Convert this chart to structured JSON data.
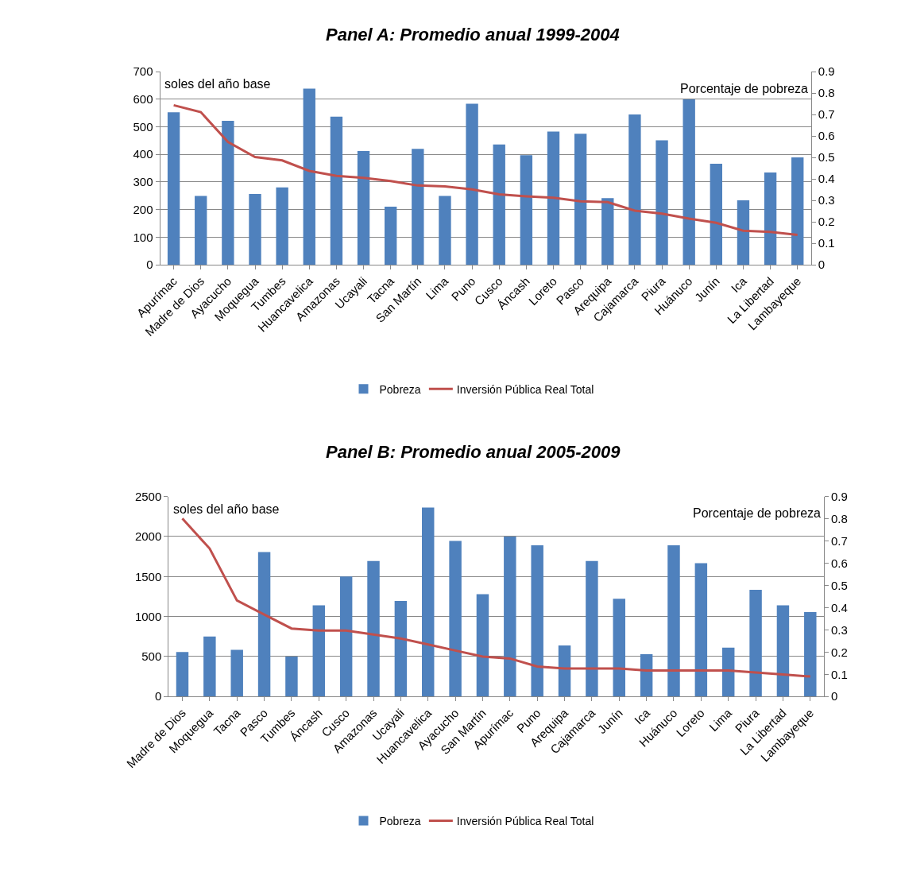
{
  "chart_data": [
    {
      "type": "bar",
      "title": "Panel A: Promedio anual 1999-2004",
      "ylabel": "soles del año base",
      "y2label": "Porcentaje de pobreza",
      "categories": [
        "Apurímac",
        "Madre de Dios",
        "Ayacucho",
        "Moquegua",
        "Tumbes",
        "Huancavelica",
        "Amazonas",
        "Ucayali",
        "Tacna",
        "San Martín",
        "Lima",
        "Puno",
        "Cusco",
        "Áncash",
        "Loreto",
        "Pasco",
        "Arequipa",
        "Cajamarca",
        "Piura",
        "Huánuco",
        "Junín",
        "Ica",
        "La Libertad",
        "Lambayeque"
      ],
      "series": [
        {
          "name": "Pobreza",
          "axis": "y2",
          "color": "#4f81bd",
          "values": [
            0.71,
            0.32,
            0.67,
            0.33,
            0.36,
            0.82,
            0.69,
            0.53,
            0.27,
            0.54,
            0.32,
            0.75,
            0.56,
            0.51,
            0.62,
            0.61,
            0.31,
            0.7,
            0.58,
            0.77,
            0.47,
            0.3,
            0.43,
            0.5
          ]
        },
        {
          "name": "Inversión Pública Real Total",
          "type": "line",
          "color": "#c0504d",
          "values": [
            578,
            553,
            445,
            390,
            378,
            340,
            322,
            315,
            303,
            287,
            284,
            273,
            255,
            248,
            243,
            230,
            227,
            196,
            185,
            167,
            152,
            123,
            119,
            108
          ]
        }
      ],
      "ylim": [
        0,
        700
      ],
      "yticks": [
        0,
        100,
        200,
        300,
        400,
        500,
        600,
        700
      ],
      "y2lim": [
        0,
        0.9
      ],
      "y2ticks": [
        0,
        0.1,
        0.2,
        0.3,
        0.4,
        0.5,
        0.6,
        0.7,
        0.8,
        0.9
      ],
      "grid": "y",
      "legend": "bottom",
      "marker": "none",
      "line_style": "solid"
    },
    {
      "type": "bar",
      "title": "Panel B: Promedio anual 2005-2009",
      "ylabel": "soles del año base",
      "y2label": "Porcentaje de pobreza",
      "categories": [
        "Madre de Dios",
        "Moquegua",
        "Tacna",
        "Pasco",
        "Tumbes",
        "Áncash",
        "Cusco",
        "Amazonas",
        "Ucayali",
        "Huancavelica",
        "Ayacucho",
        "San Martín",
        "Apurímac",
        "Puno",
        "Arequipa",
        "Cajamarca",
        "Junín",
        "Ica",
        "Huánuco",
        "Loreto",
        "Lima",
        "Piura",
        "La Libertad",
        "Lambayeque"
      ],
      "series": [
        {
          "name": "Pobreza",
          "axis": "y2",
          "color": "#4f81bd",
          "values": [
            0.2,
            0.27,
            0.21,
            0.65,
            0.18,
            0.41,
            0.54,
            0.61,
            0.43,
            0.85,
            0.7,
            0.46,
            0.72,
            0.68,
            0.23,
            0.61,
            0.44,
            0.19,
            0.68,
            0.6,
            0.22,
            0.48,
            0.41,
            0.38
          ]
        },
        {
          "name": "Inversión Pública Real Total",
          "type": "line",
          "color": "#c0504d",
          "values": [
            2225,
            1850,
            1200,
            1025,
            850,
            825,
            825,
            775,
            725,
            650,
            575,
            500,
            475,
            375,
            350,
            350,
            350,
            325,
            325,
            325,
            325,
            300,
            275,
            250
          ]
        }
      ],
      "ylim": [
        0,
        2500
      ],
      "yticks": [
        0,
        500,
        1000,
        1500,
        2000,
        2500
      ],
      "y2lim": [
        0,
        0.9
      ],
      "y2ticks": [
        0,
        0.1,
        0.2,
        0.3,
        0.4,
        0.5,
        0.6,
        0.7,
        0.8,
        0.9
      ],
      "grid": "y",
      "legend": "bottom",
      "marker": "none",
      "line_style": "solid"
    }
  ]
}
